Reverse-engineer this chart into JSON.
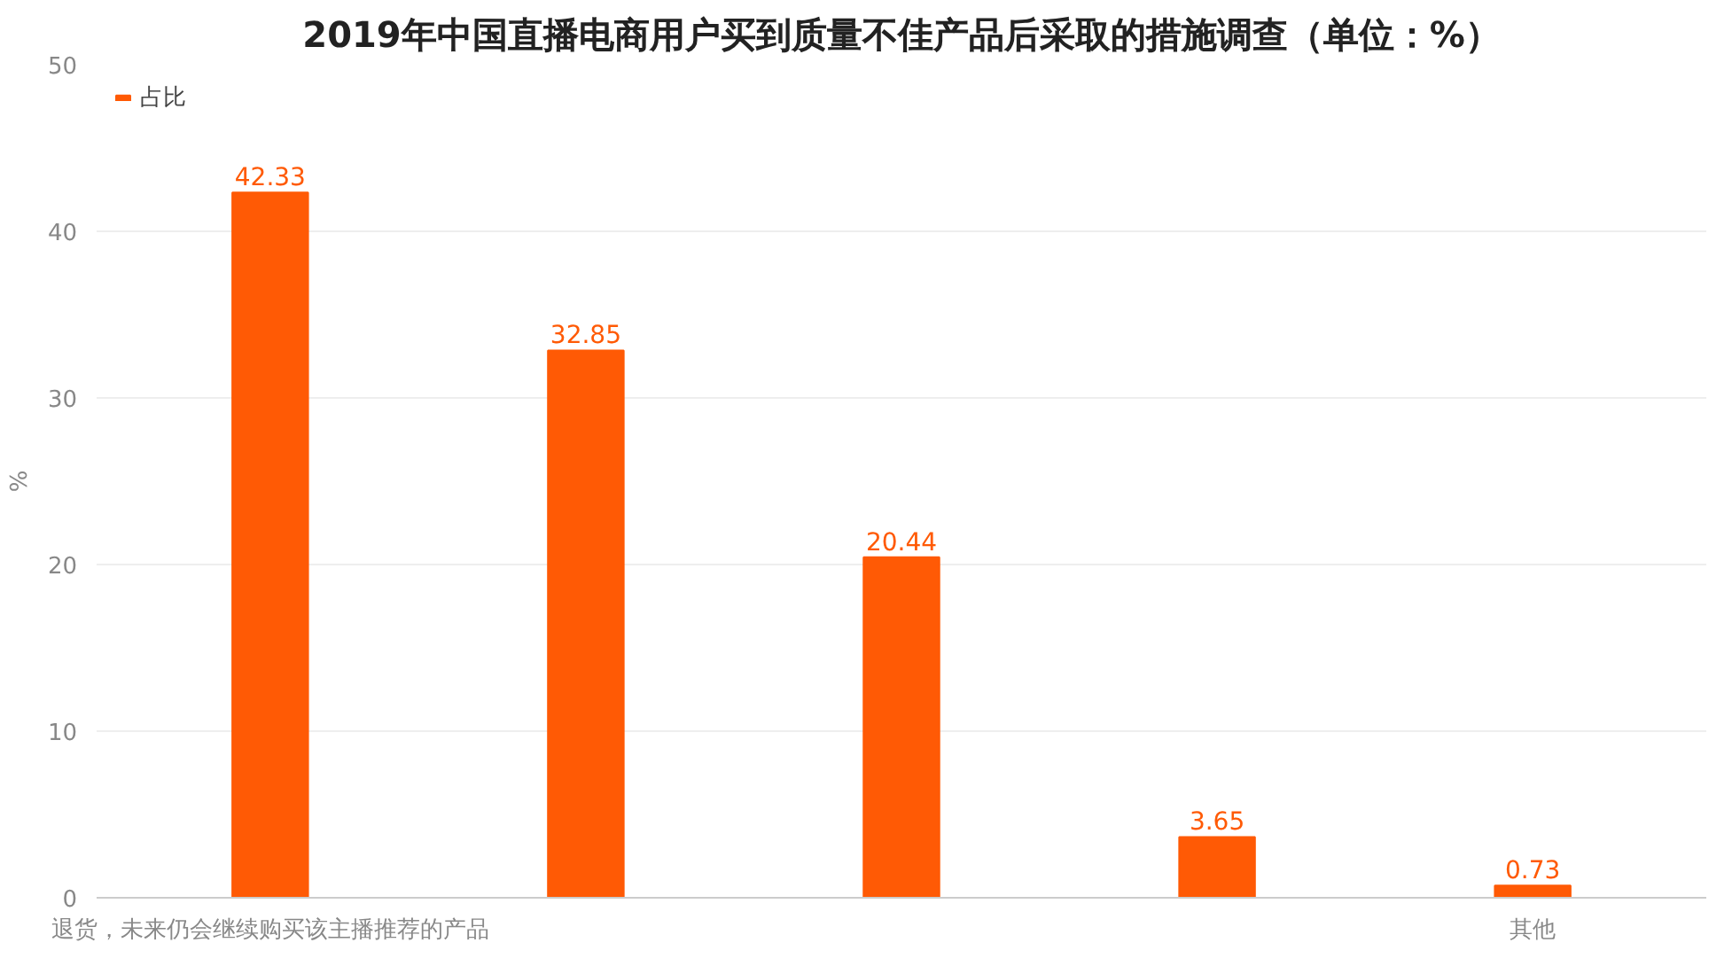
{
  "chart_data": {
    "type": "bar",
    "title": "2019年中国直播电商用户买到质量不佳产品后采取的措施调查（单位：%）",
    "ylabel": "%",
    "categories": [
      "退货，未来仍会继续购买该主播推荐的产品",
      null,
      null,
      null,
      "其他"
    ],
    "series": [
      {
        "name": "占比",
        "color": "#ff5a05",
        "values": [
          42.33,
          32.85,
          20.44,
          3.65,
          0.73
        ]
      }
    ],
    "ylim": [
      0,
      50
    ],
    "yticks": [
      0,
      10,
      20,
      30,
      40,
      50
    ],
    "grid": "y",
    "legend": "top left",
    "data_labels": true
  }
}
